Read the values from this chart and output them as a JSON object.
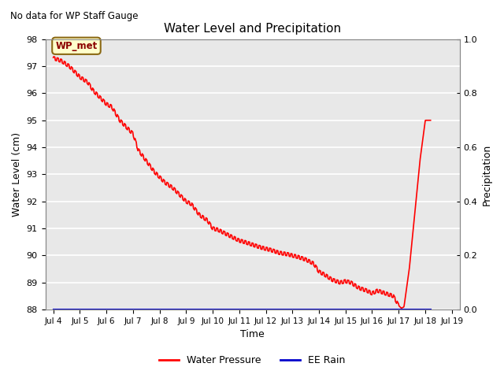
{
  "title": "Water Level and Precipitation",
  "subtitle": "No data for WP Staff Gauge",
  "ylabel_left": "Water Level (cm)",
  "ylabel_right": "Precipitation",
  "xlabel": "Time",
  "annotation": "WP_met",
  "ylim_left": [
    88.0,
    98.0
  ],
  "ylim_right": [
    0.0,
    1.0
  ],
  "yticks_left": [
    88.0,
    89.0,
    90.0,
    91.0,
    92.0,
    93.0,
    94.0,
    95.0,
    96.0,
    97.0,
    98.0
  ],
  "yticks_right": [
    0.0,
    0.2,
    0.4,
    0.6,
    0.8,
    1.0
  ],
  "xtick_labels": [
    "Jul 4",
    "Jul 5",
    "Jul 6",
    "Jul 7",
    "Jul 8",
    "Jul 9",
    "Jul 10",
    "Jul 11",
    "Jul 12",
    "Jul 13",
    "Jul 14",
    "Jul 15",
    "Jul 16",
    "Jul 17",
    "Jul 18",
    "Jul 19"
  ],
  "bg_color": "#e8e8e8",
  "line_color_water": "#ff0000",
  "line_color_rain": "#0000cc",
  "legend_water": "Water Pressure",
  "legend_rain": "EE Rain",
  "annotation_facecolor": "#ffffcc",
  "annotation_edgecolor": "#8B6914",
  "annotation_textcolor": "#8B0000",
  "water_keypoints_x": [
    0,
    0.3,
    0.6,
    0.8,
    1.0,
    1.3,
    1.5,
    1.7,
    2.0,
    2.2,
    2.5,
    2.8,
    3.0,
    3.2,
    3.5,
    3.8,
    4.0,
    4.2,
    4.5,
    4.7,
    5.0,
    5.2,
    5.5,
    5.8,
    6.0,
    6.2,
    6.5,
    6.8,
    7.0,
    7.2,
    7.5,
    7.8,
    8.0,
    8.2,
    8.5,
    8.8,
    9.0,
    9.2,
    9.5,
    9.8,
    10.0,
    10.2,
    10.5,
    10.8,
    11.0,
    11.2,
    11.5,
    11.8,
    12.0,
    12.2,
    12.5,
    12.8,
    13.0,
    13.05,
    13.1,
    13.2,
    13.4,
    13.6,
    13.8,
    14.0,
    14.2
  ],
  "water_keypoints_y": [
    97.3,
    97.2,
    97.0,
    96.8,
    96.6,
    96.4,
    96.1,
    95.9,
    95.6,
    95.5,
    95.0,
    94.7,
    94.5,
    93.9,
    93.5,
    93.1,
    92.9,
    92.7,
    92.5,
    92.3,
    92.0,
    91.9,
    91.5,
    91.3,
    91.0,
    90.95,
    90.8,
    90.65,
    90.55,
    90.5,
    90.4,
    90.3,
    90.25,
    90.2,
    90.1,
    90.05,
    90.0,
    89.95,
    89.85,
    89.7,
    89.4,
    89.3,
    89.1,
    89.0,
    89.05,
    89.0,
    88.8,
    88.7,
    88.6,
    88.7,
    88.6,
    88.5,
    88.15,
    88.1,
    88.05,
    88.1,
    89.5,
    91.5,
    93.5,
    95.0,
    95.0
  ]
}
